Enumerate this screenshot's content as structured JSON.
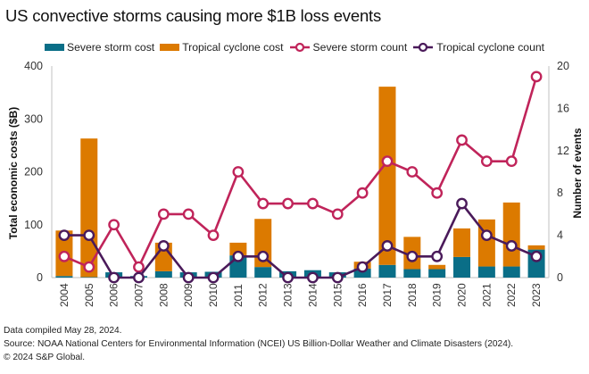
{
  "chart_data": {
    "type": "bar",
    "title": "US convective storms causing more $1B loss events",
    "categories": [
      "2004",
      "2005",
      "2006",
      "2007",
      "2008",
      "2009",
      "2010",
      "2011",
      "2012",
      "2013",
      "2014",
      "2015",
      "2016",
      "2017",
      "2018",
      "2019",
      "2020",
      "2021",
      "2022",
      "2023"
    ],
    "series": [
      {
        "name": "Severe storm cost",
        "kind": "bar",
        "axis": "left",
        "color": "#0a6e87",
        "values": [
          3,
          1,
          10,
          3,
          12,
          10,
          11,
          42,
          20,
          12,
          14,
          10,
          17,
          24,
          16,
          16,
          39,
          21,
          21,
          53
        ]
      },
      {
        "name": "Tropical cyclone cost",
        "kind": "bar",
        "axis": "left",
        "color": "#dc7a00",
        "values": [
          86,
          262,
          0,
          0,
          54,
          0,
          0,
          24,
          91,
          0,
          0,
          0,
          13,
          337,
          61,
          8,
          54,
          89,
          121,
          8
        ]
      },
      {
        "name": "Severe storm count",
        "kind": "line",
        "axis": "right",
        "color": "#c0245a",
        "values": [
          2,
          1,
          5,
          1,
          6,
          6,
          4,
          10,
          7,
          7,
          7,
          6,
          8,
          11,
          10,
          8,
          13,
          11,
          11,
          19
        ]
      },
      {
        "name": "Tropical cyclone count",
        "kind": "line",
        "axis": "right",
        "color": "#4a1a5a",
        "values": [
          4,
          4,
          0,
          0,
          3,
          0,
          0,
          2,
          2,
          0,
          0,
          0,
          1,
          3,
          2,
          2,
          7,
          4,
          3,
          2
        ]
      }
    ],
    "stacked": true,
    "ylabel": "Total economic costs ($B)",
    "ylim": [
      0,
      400
    ],
    "yticks": [
      "0",
      "100",
      "200",
      "300",
      "400"
    ],
    "y2label": "Number of events",
    "y2lim": [
      0,
      20
    ],
    "y2ticks": [
      "0",
      "4",
      "8",
      "12",
      "16",
      "20"
    ],
    "xlabel": "",
    "grid": false,
    "legend_position": "top-center"
  },
  "legend": [
    {
      "label": "Severe storm cost",
      "style": "bar",
      "color": "#0a6e87"
    },
    {
      "label": "Tropical cyclone cost",
      "style": "bar",
      "color": "#dc7a00"
    },
    {
      "label": "Severe storm count",
      "style": "line",
      "color": "#c0245a"
    },
    {
      "label": "Tropical cyclone count",
      "style": "line",
      "color": "#4a1a5a"
    }
  ],
  "footer": {
    "line1": "Data compiled May 28, 2024.",
    "line2": "Source: NOAA National Centers for Environmental Information (NCEI) US Billion-Dollar Weather and Climate Disasters (2024).",
    "line3": "© 2024 S&P Global."
  }
}
